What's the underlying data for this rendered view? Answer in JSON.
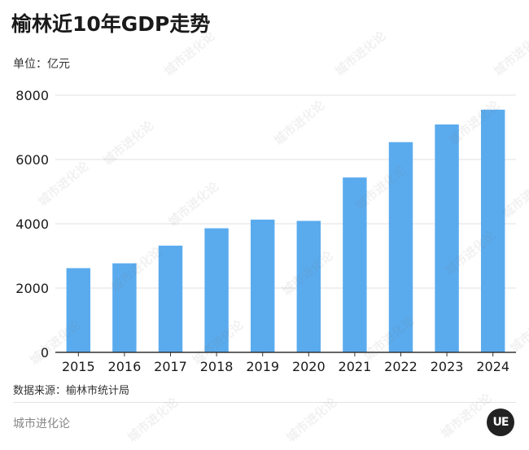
{
  "header": {
    "title": "榆林近10年GDP走势",
    "unit": "单位：亿元"
  },
  "footer": {
    "source": "数据来源：榆林市统计局",
    "brand": "城市进化论",
    "logo_text": "UE"
  },
  "watermark_text": "城市进化论",
  "colors": {
    "bar": "#5aabee",
    "axis": "#333333",
    "grid": "#e0e0e0"
  },
  "chart_data": {
    "type": "bar",
    "categories": [
      "2015",
      "2016",
      "2017",
      "2018",
      "2019",
      "2020",
      "2021",
      "2022",
      "2023",
      "2024"
    ],
    "values": [
      2620,
      2770,
      3320,
      3860,
      4130,
      4090,
      5440,
      6540,
      7090,
      7550
    ],
    "title": "榆林近10年GDP走势",
    "ylabel": "单位：亿元",
    "xlabel": "",
    "ylim": [
      0,
      8000
    ],
    "yticks": [
      0,
      2000,
      4000,
      6000,
      8000
    ],
    "grid": true
  }
}
